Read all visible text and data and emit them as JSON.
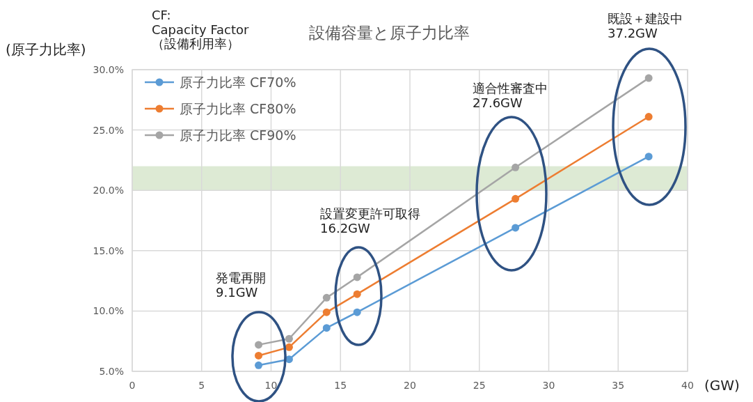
{
  "chart_data": {
    "type": "line",
    "title": "設備容量と原子力比率",
    "xlabel": "(GW)",
    "ylabel": "(原子力比率)",
    "x": [
      9.1,
      11.3,
      14.0,
      16.2,
      27.6,
      37.2
    ],
    "series": [
      {
        "name": "原子力比率 CF70%",
        "color": "#5b9bd5",
        "values": [
          5.5,
          6.0,
          8.6,
          9.9,
          16.9,
          22.8
        ]
      },
      {
        "name": "原子力比率 CF80%",
        "color": "#ed7d31",
        "values": [
          6.3,
          7.0,
          9.9,
          11.4,
          19.3,
          26.1
        ]
      },
      {
        "name": "原子力比率 CF90%",
        "color": "#a5a5a5",
        "values": [
          7.2,
          7.7,
          11.1,
          12.8,
          21.9,
          29.3
        ]
      }
    ],
    "xlim": [
      0,
      40
    ],
    "xticks": [
      0,
      5,
      10,
      15,
      20,
      25,
      30,
      35,
      40
    ],
    "ylim": [
      5,
      30
    ],
    "yticks": [
      {
        "value": 5,
        "label": "5.0%"
      },
      {
        "value": 10,
        "label": "10.0%"
      },
      {
        "value": 15,
        "label": "15.0%"
      },
      {
        "value": 20,
        "label": "20.0%"
      },
      {
        "value": 25,
        "label": "25.0%"
      },
      {
        "value": 30,
        "label": "30.0%"
      }
    ],
    "bands": [
      {
        "axis": "y",
        "from": 20,
        "to": 22,
        "color": "#d9e8cf"
      }
    ],
    "annotations": [
      "CF:\nCapacity Factor\n（設備利用率）",
      "発電再開\n9.1GW",
      "設置変更許可取得\n16.2GW",
      "適合性審査中\n27.6GW",
      "既設＋建設中\n37.2GW"
    ],
    "grid": true,
    "legend": "top left",
    "marker": "circle",
    "line_style": "solid"
  }
}
